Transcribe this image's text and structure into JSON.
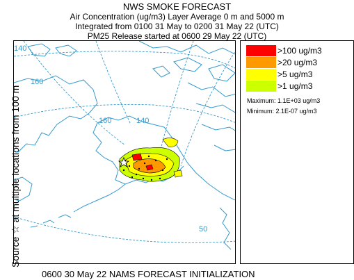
{
  "header": {
    "title": "NWS SMOKE FORECAST",
    "line2": "Air Concentration (ug/m3) Layer Average     0 m and  5000 m",
    "line3": "Integrated from 0100 31 May to 0200 31 May 22 (UTC)",
    "line4": "PM25 Release started at 0600 29 May 22 (UTC)"
  },
  "side_label": "Source ☆   at multiple locations   from  100 m",
  "map": {
    "graticule_labels": [
      "140",
      "160",
      "160",
      "140",
      "50"
    ],
    "colors": {
      "coast": "#3399cc",
      "grid": "#3399cc"
    }
  },
  "legend": {
    "items": [
      {
        "label": ">100 ug/m3",
        "color": "#ff0000"
      },
      {
        "label": ">20 ug/m3",
        "color": "#ff9900"
      },
      {
        "label": ">5 ug/m3",
        "color": "#ffff00"
      },
      {
        "label": ">1 ug/m3",
        "color": "#ccff00"
      }
    ],
    "maximum": "Maximum: 1.1E+03 ug/m3",
    "minimum": "Minimum: 2.1E-07 ug/m3"
  },
  "footer": "0600 30 May 22 NAMS FORECAST INITIALIZATION"
}
